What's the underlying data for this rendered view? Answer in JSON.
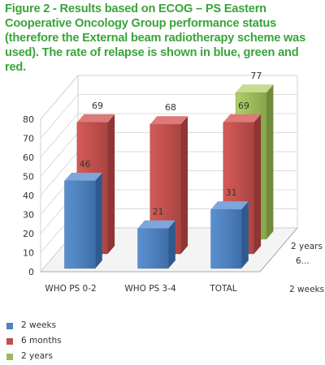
{
  "caption": "Figure 2 - Results based on ECOG – PS Eastern Cooperative Oncology Group performance status (therefore the External beam radiotherapy  scheme was used). The rate of relapse is shown in blue, green and red.",
  "chart_data": {
    "type": "bar",
    "style": "3d-clustered-depth",
    "categories": [
      "WHO PS 0-2",
      "WHO PS 3-4",
      "TOTAL"
    ],
    "depth_axis_labels": [
      "2 years",
      "6...",
      "2 weeks"
    ],
    "series": [
      {
        "name": "2 weeks",
        "color": "#4f81bd",
        "values": [
          46,
          21,
          31
        ]
      },
      {
        "name": "6 months",
        "color": "#c0504d",
        "values": [
          69,
          68,
          69
        ]
      },
      {
        "name": "2 years",
        "color": "#9bbb59",
        "values": [
          null,
          null,
          77
        ]
      }
    ],
    "yticks": [
      0,
      10,
      20,
      30,
      40,
      50,
      60,
      70,
      80
    ],
    "ylim": [
      0,
      80
    ],
    "grid": true,
    "legend_position": "bottom-left"
  }
}
